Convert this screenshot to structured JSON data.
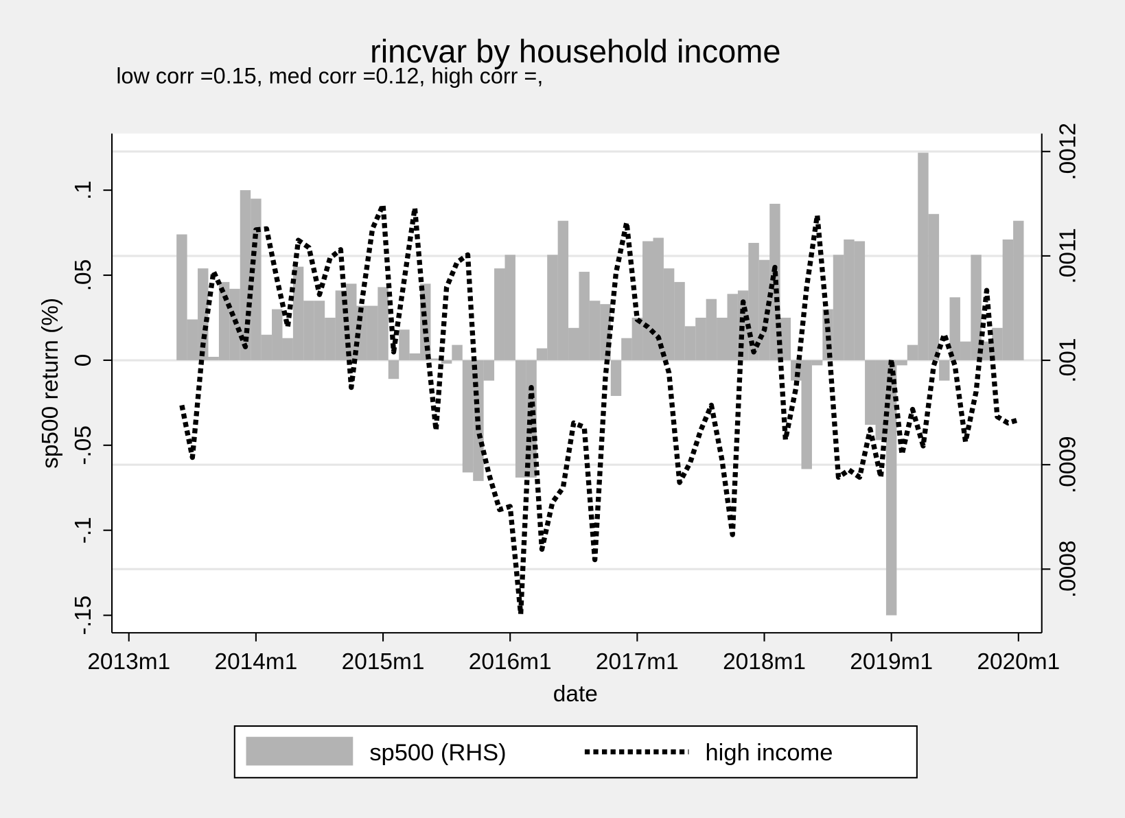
{
  "chart_data": {
    "type": "bar+line",
    "title": "rincvar by household income",
    "subtitle": "low corr =0.15, med corr =0.12, high corr =,",
    "xlabel": "date",
    "ylabel": "sp500 return (%)",
    "x": [
      641,
      642,
      643,
      644,
      645,
      646,
      647,
      648,
      649,
      650,
      651,
      652,
      653,
      654,
      655,
      656,
      657,
      658,
      659,
      660,
      661,
      662,
      663,
      664,
      665,
      666,
      667,
      668,
      669,
      670,
      671,
      672,
      673,
      674,
      675,
      676,
      677,
      678,
      679,
      680,
      681,
      682,
      683,
      684,
      685,
      686,
      687,
      688,
      689,
      690,
      691,
      692,
      693,
      694,
      695,
      696,
      697,
      698,
      699,
      700,
      701,
      702,
      703,
      704,
      705,
      706,
      707,
      708,
      709,
      710,
      711,
      712,
      713,
      714,
      715,
      716,
      717,
      718,
      719,
      720
    ],
    "series": [
      {
        "name": "sp500 (RHS)",
        "type": "bar",
        "color": "#b3b3b3",
        "values": [
          0.074,
          0.024,
          0.054,
          0.002,
          0.046,
          0.042,
          0.1,
          0.095,
          0.015,
          0.03,
          0.013,
          0.055,
          0.035,
          0.035,
          0.025,
          0.041,
          0.045,
          0.032,
          0.032,
          0.043,
          -0.011,
          0.018,
          0.004,
          0.045,
          0.001,
          -0.002,
          0.009,
          -0.066,
          -0.071,
          -0.012,
          0.054,
          0.062,
          -0.069,
          -0.069,
          0.007,
          0.062,
          0.082,
          0.019,
          0.052,
          0.035,
          0.033,
          -0.021,
          0.013,
          0.025,
          0.07,
          0.072,
          0.054,
          0.046,
          0.02,
          0.025,
          0.036,
          0.025,
          0.039,
          0.041,
          0.069,
          0.059,
          0.092,
          0.025,
          -0.012,
          -0.064,
          -0.003,
          0.03,
          0.062,
          0.071,
          0.07,
          -0.038,
          -0.047,
          -0.15,
          -0.003,
          0.009,
          0.122,
          0.086,
          -0.012,
          0.037,
          0.011,
          0.062,
          0.011,
          0.019,
          0.071,
          0.082
        ]
      },
      {
        "name": "high income",
        "type": "line",
        "axis": "y2",
        "color": "#000000",
        "values": [
          0.000957,
          0.000907,
          0.001015,
          0.001085,
          0.001063,
          0.001039,
          0.001013,
          0.001125,
          0.001126,
          0.001077,
          0.001032,
          0.001115,
          0.001108,
          0.001063,
          0.001098,
          0.001106,
          0.000974,
          0.001056,
          0.001126,
          0.001149,
          0.001008,
          0.001077,
          0.001146,
          0.001029,
          0.000933,
          0.00107,
          0.001094,
          0.001101,
          0.000933,
          0.000891,
          0.000857,
          0.00086,
          0.000757,
          0.000974,
          0.000819,
          0.000864,
          0.000878,
          0.00094,
          0.000936,
          0.000809,
          0.000984,
          0.001084,
          0.001132,
          0.001039,
          0.001032,
          0.001022,
          0.000988,
          0.000883,
          0.000902,
          0.000933,
          0.000957,
          0.000905,
          0.000833,
          0.001056,
          0.001008,
          0.001029,
          0.001089,
          0.000924,
          0.000974,
          0.00107,
          0.001139,
          0.001029,
          0.000888,
          0.000895,
          0.000888,
          0.000934,
          0.000888,
          0.001001,
          0.00091,
          0.000953,
          0.000918,
          0.000995,
          0.001025,
          0.000995,
          0.000922,
          0.00097,
          0.001067,
          0.000946,
          0.00094,
          0.000943
        ]
      }
    ],
    "xlim": [
      634.4,
      722.2
    ],
    "xticks": [
      {
        "value": 636,
        "label": "2013m1"
      },
      {
        "value": 648,
        "label": "2014m1"
      },
      {
        "value": 660,
        "label": "2015m1"
      },
      {
        "value": 672,
        "label": "2016m1"
      },
      {
        "value": 684,
        "label": "2017m1"
      },
      {
        "value": 696,
        "label": "2018m1"
      },
      {
        "value": 708,
        "label": "2019m1"
      },
      {
        "value": 720,
        "label": "2020m1"
      }
    ],
    "ylim": [
      -0.1603,
      0.1333
    ],
    "yticks": [
      {
        "value": -0.15,
        "label": "-.15"
      },
      {
        "value": -0.1,
        "label": "-.1"
      },
      {
        "value": -0.05,
        "label": "-.05"
      },
      0,
      {
        "value": 0.05,
        "label": ".05"
      },
      {
        "value": 0.1,
        "label": ".1"
      }
    ],
    "y2lim": [
      0.000739,
      0.0012172
    ],
    "y2ticks": [
      {
        "value": 0.0008,
        "label": ".0008"
      },
      {
        "value": 0.0009,
        "label": ".0009"
      },
      {
        "value": 0.001,
        "label": ".001"
      },
      {
        "value": 0.0011,
        "label": ".0011"
      },
      {
        "value": 0.0012,
        "label": ".0012"
      }
    ],
    "grid": "y2",
    "legend": "bottom"
  }
}
